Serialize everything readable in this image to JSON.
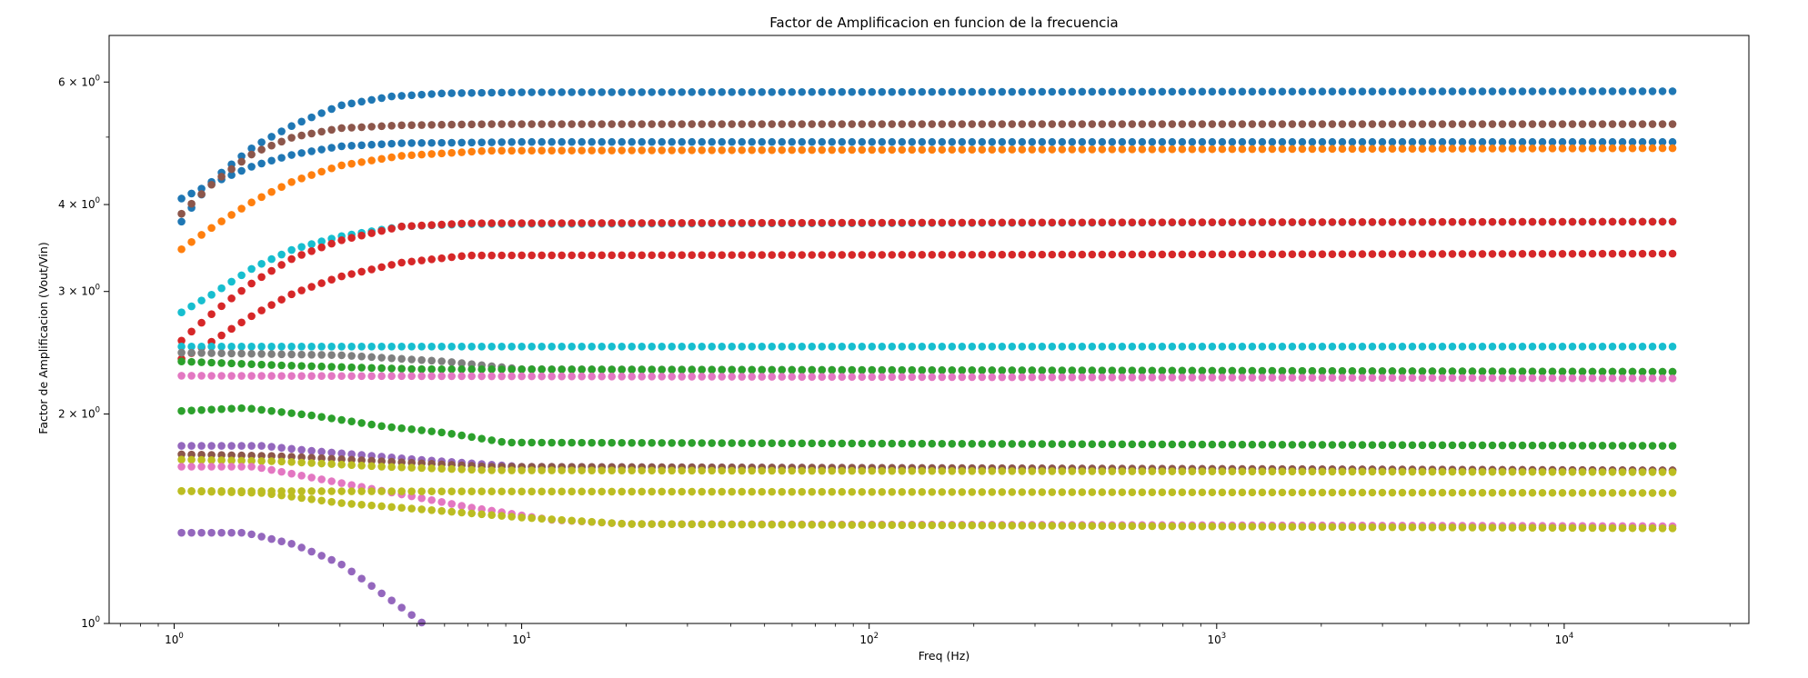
{
  "chart_data": {
    "type": "scatter",
    "title": "Factor de Amplificacion en funcion de la frecuencia",
    "xlabel": "Freq (Hz)",
    "ylabel": "Factor de Amplificacion (Vout/Vin)",
    "xscale": "log",
    "yscale": "log",
    "xlim": [
      0.65,
      34000
    ],
    "ylim": [
      1.0,
      7.0
    ],
    "grid": false,
    "legend": "none",
    "x_ticks": [
      {
        "value": 1,
        "base": "10",
        "exp": "0"
      },
      {
        "value": 10,
        "base": "10",
        "exp": "1"
      },
      {
        "value": 100,
        "base": "10",
        "exp": "2"
      },
      {
        "value": 1000,
        "base": "10",
        "exp": "3"
      },
      {
        "value": 10000,
        "base": "10",
        "exp": "4"
      }
    ],
    "y_ticks": [
      {
        "value": 1,
        "mant": "",
        "base": "10",
        "exp": "0"
      },
      {
        "value": 2,
        "mant": "2 × ",
        "base": "10",
        "exp": "0"
      },
      {
        "value": 3,
        "mant": "3 × ",
        "base": "10",
        "exp": "0"
      },
      {
        "value": 4,
        "mant": "4 × ",
        "base": "10",
        "exp": "0"
      },
      {
        "value": 6,
        "mant": "6 × ",
        "base": "10",
        "exp": "0"
      }
    ],
    "x_range": [
      1.05,
      20500
    ],
    "n_points": 150,
    "series": [
      {
        "color": "#1f77b4",
        "values": [
          [
            1.05,
            3.78
          ],
          [
            1.3,
            4.35
          ],
          [
            1.7,
            4.85
          ],
          [
            2.2,
            5.2
          ],
          [
            3,
            5.55
          ],
          [
            4.2,
            5.72
          ],
          [
            6,
            5.78
          ],
          [
            10,
            5.8
          ],
          [
            20500,
            5.82
          ]
        ]
      },
      {
        "color": "#1f77b4",
        "values": [
          [
            1.05,
            4.08
          ],
          [
            1.3,
            4.3
          ],
          [
            1.7,
            4.55
          ],
          [
            2.2,
            4.72
          ],
          [
            3,
            4.85
          ],
          [
            4.5,
            4.9
          ],
          [
            10,
            4.92
          ],
          [
            20500,
            4.92
          ]
        ]
      },
      {
        "color": "#8c564b",
        "values": [
          [
            1.05,
            3.88
          ],
          [
            1.3,
            4.3
          ],
          [
            1.7,
            4.75
          ],
          [
            2.2,
            5.0
          ],
          [
            3,
            5.15
          ],
          [
            4.5,
            5.2
          ],
          [
            8,
            5.22
          ],
          [
            20500,
            5.22
          ]
        ]
      },
      {
        "color": "#ff7f0e",
        "values": [
          [
            1.05,
            3.45
          ],
          [
            1.3,
            3.72
          ],
          [
            1.7,
            4.05
          ],
          [
            2.2,
            4.32
          ],
          [
            3,
            4.55
          ],
          [
            4.5,
            4.7
          ],
          [
            8,
            4.78
          ],
          [
            20500,
            4.82
          ]
        ]
      },
      {
        "color": "#17becf",
        "values": [
          [
            1.05,
            2.8
          ],
          [
            1.3,
            2.98
          ],
          [
            1.7,
            3.25
          ],
          [
            2.2,
            3.45
          ],
          [
            3,
            3.6
          ],
          [
            4.5,
            3.72
          ],
          [
            7,
            3.75
          ],
          [
            20500,
            3.78
          ]
        ]
      },
      {
        "color": "#d62728",
        "values": [
          [
            1.05,
            2.55
          ],
          [
            1.3,
            2.8
          ],
          [
            1.7,
            3.1
          ],
          [
            2.2,
            3.35
          ],
          [
            3,
            3.55
          ],
          [
            4.5,
            3.72
          ],
          [
            7,
            3.76
          ],
          [
            20500,
            3.78
          ]
        ]
      },
      {
        "color": "#d62728",
        "values": [
          [
            1.05,
            2.4
          ],
          [
            1.3,
            2.55
          ],
          [
            1.7,
            2.78
          ],
          [
            2.2,
            2.98
          ],
          [
            3,
            3.15
          ],
          [
            4.5,
            3.3
          ],
          [
            7,
            3.38
          ],
          [
            20500,
            3.4
          ]
        ]
      },
      {
        "color": "#17becf",
        "values": [
          [
            1.05,
            2.5
          ],
          [
            20500,
            2.5
          ]
        ]
      },
      {
        "color": "#7f7f7f",
        "values": [
          [
            1.05,
            2.45
          ],
          [
            3,
            2.43
          ],
          [
            6,
            2.38
          ],
          [
            10,
            2.32
          ],
          [
            20500,
            2.3
          ]
        ]
      },
      {
        "color": "#2ca02c",
        "values": [
          [
            1.05,
            2.38
          ],
          [
            2,
            2.35
          ],
          [
            5,
            2.32
          ],
          [
            20500,
            2.3
          ]
        ]
      },
      {
        "color": "#e377c2",
        "values": [
          [
            1.05,
            2.27
          ],
          [
            20500,
            2.25
          ]
        ]
      },
      {
        "color": "#2ca02c",
        "values": [
          [
            1.05,
            2.02
          ],
          [
            1.6,
            2.04
          ],
          [
            2.5,
            1.99
          ],
          [
            4,
            1.92
          ],
          [
            6,
            1.88
          ],
          [
            9,
            1.82
          ],
          [
            20500,
            1.8
          ]
        ]
      },
      {
        "color": "#9467bd",
        "values": [
          [
            1.05,
            1.8
          ],
          [
            1.8,
            1.8
          ],
          [
            2.5,
            1.77
          ],
          [
            5,
            1.72
          ],
          [
            10,
            1.68
          ],
          [
            20500,
            1.66
          ]
        ]
      },
      {
        "color": "#8c564b",
        "values": [
          [
            1.05,
            1.75
          ],
          [
            2,
            1.74
          ],
          [
            4,
            1.71
          ],
          [
            8,
            1.68
          ],
          [
            20500,
            1.66
          ]
        ]
      },
      {
        "color": "#bcbd22",
        "values": [
          [
            1.05,
            1.72
          ],
          [
            2,
            1.71
          ],
          [
            4,
            1.68
          ],
          [
            8,
            1.66
          ],
          [
            20500,
            1.65
          ]
        ]
      },
      {
        "color": "#e377c2",
        "values": [
          [
            1.05,
            1.68
          ],
          [
            1.7,
            1.68
          ],
          [
            2.5,
            1.62
          ],
          [
            4,
            1.55
          ],
          [
            7,
            1.47
          ],
          [
            12,
            1.41
          ],
          [
            20,
            1.39
          ],
          [
            20500,
            1.38
          ]
        ]
      },
      {
        "color": "#bcbd22",
        "values": [
          [
            1.05,
            1.55
          ],
          [
            1.8,
            1.54
          ],
          [
            3,
            1.49
          ],
          [
            6,
            1.45
          ],
          [
            10,
            1.42
          ],
          [
            20,
            1.39
          ],
          [
            20500,
            1.37
          ]
        ]
      },
      {
        "color": "#bcbd22",
        "values": [
          [
            1.05,
            1.55
          ],
          [
            20500,
            1.54
          ]
        ]
      },
      {
        "color": "#9467bd",
        "values": [
          [
            1.05,
            1.35
          ],
          [
            1.6,
            1.35
          ],
          [
            2.2,
            1.3
          ],
          [
            3,
            1.22
          ],
          [
            4,
            1.1
          ],
          [
            5.2,
            1.0
          ]
        ]
      }
    ]
  }
}
